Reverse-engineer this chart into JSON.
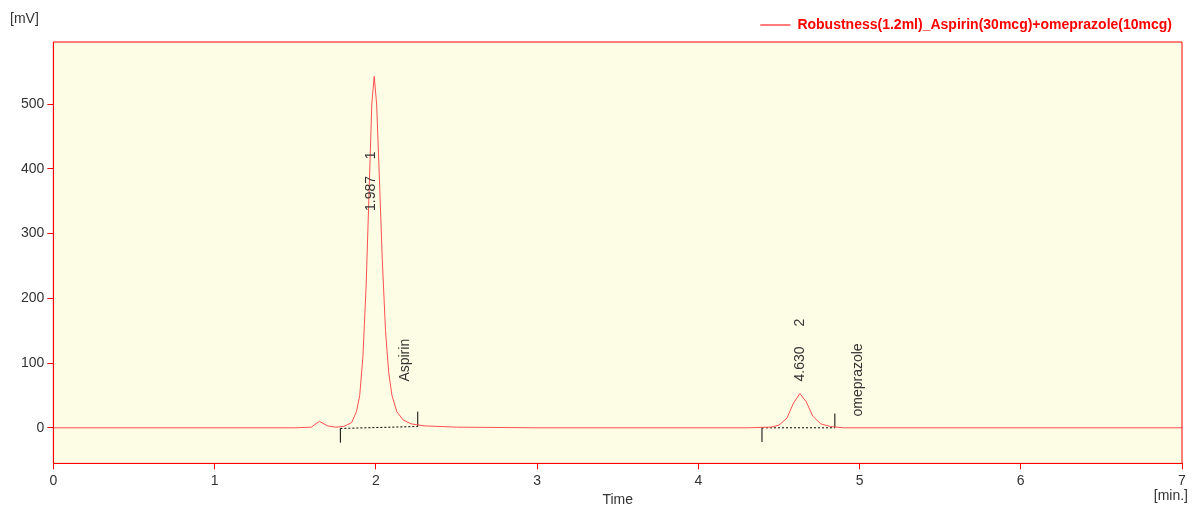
{
  "chart_data": {
    "type": "line",
    "xlabel": "Time",
    "ylabel": "[mV]",
    "xlim": [
      0,
      7
    ],
    "xticks": [
      0,
      1,
      2,
      3,
      4,
      5,
      6,
      7
    ],
    "ylim": [
      -55,
      596
    ],
    "yticks": [
      0,
      100,
      200,
      300,
      400,
      500
    ],
    "grid": false,
    "legend": "top right",
    "marker": "none",
    "series": [
      {
        "name": "Robustness(1.2ml)_Aspirin(30mcg)+omeprazole(10mcg)",
        "color": "#ff5050",
        "line_style": "solid",
        "x": [
          0,
          1.5,
          1.6,
          1.65,
          1.7,
          1.75,
          1.8,
          1.85,
          1.88,
          1.9,
          1.92,
          1.94,
          1.96,
          1.975,
          1.99,
          2.005,
          2.02,
          2.04,
          2.06,
          2.08,
          2.1,
          2.13,
          2.17,
          2.22,
          2.3,
          2.5,
          3,
          4.3,
          4.45,
          4.5,
          4.55,
          4.59,
          4.63,
          4.67,
          4.71,
          4.76,
          4.82,
          4.9,
          7
        ],
        "values": [
          0,
          0,
          1,
          10,
          3,
          1,
          2,
          8,
          25,
          50,
          110,
          220,
          380,
          500,
          543,
          500,
          400,
          260,
          150,
          85,
          50,
          25,
          12,
          6,
          3,
          1,
          0,
          0,
          1,
          4,
          15,
          38,
          53,
          40,
          18,
          6,
          2,
          0,
          0
        ]
      },
      {
        "color": "#000000",
        "line_style": "dotted",
        "x": [
          1.78,
          2.26
        ],
        "values": [
          -1,
          2
        ]
      },
      {
        "color": "#000000",
        "line_style": "dotted",
        "x": [
          4.395,
          4.847
        ],
        "values": [
          0,
          0
        ]
      },
      {
        "color": "#000000",
        "line_style": "solid",
        "x": [
          1.78,
          1.78
        ],
        "values": [
          -23,
          -1
        ]
      },
      {
        "color": "#000000",
        "line_style": "solid",
        "x": [
          2.26,
          2.26
        ],
        "values": [
          2,
          25
        ]
      },
      {
        "color": "#000000",
        "line_style": "solid",
        "x": [
          4.395,
          4.395
        ],
        "values": [
          -22,
          0
        ]
      },
      {
        "color": "#000000",
        "line_style": "solid",
        "x": [
          4.847,
          4.847
        ],
        "values": [
          0,
          22
        ]
      }
    ],
    "annotations": [
      {
        "text": "1.987",
        "x": 1.97,
        "y": 335
      },
      {
        "text": "1",
        "x": 1.97,
        "y": 415
      },
      {
        "text": "Aspirin",
        "x": 2.26,
        "y": 25
      },
      {
        "text": "4.630",
        "x": 4.63,
        "y": 53
      },
      "2",
      {
        "text": "omeprazole",
        "x": 4.847,
        "y": 22
      },
      "[min.]"
    ]
  }
}
